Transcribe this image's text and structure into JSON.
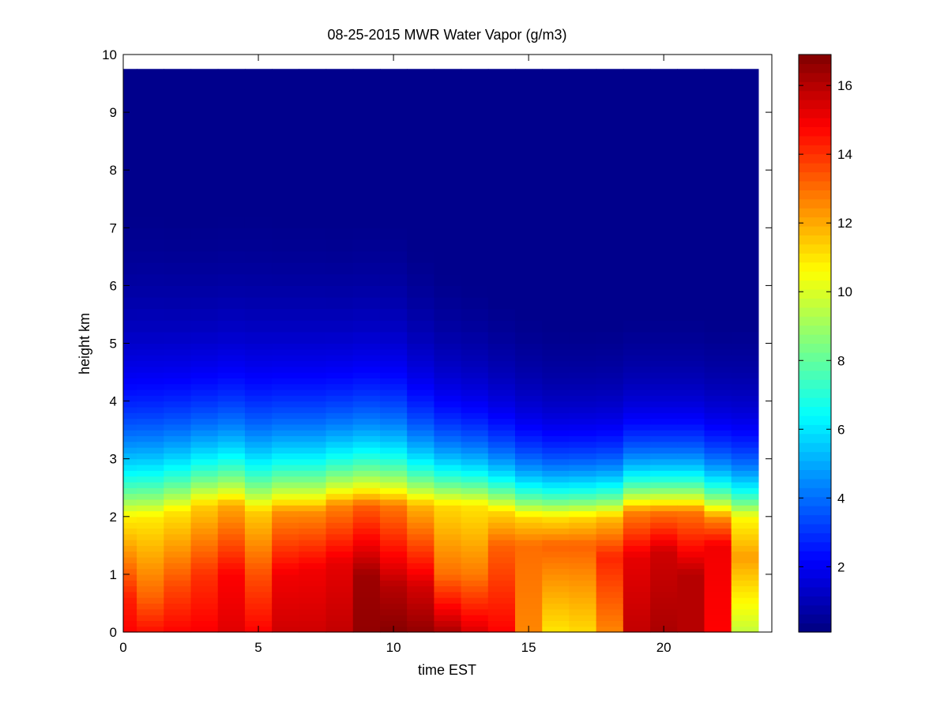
{
  "chart_data": {
    "type": "heatmap",
    "title": "08-25-2015 MWR Water Vapor (g/m3)",
    "xlabel": "time EST",
    "ylabel": "height km",
    "xlim": [
      0,
      24
    ],
    "ylim": [
      0,
      10
    ],
    "x_ticks": [
      0,
      5,
      10,
      15,
      20
    ],
    "y_ticks": [
      0,
      1,
      2,
      3,
      4,
      5,
      6,
      7,
      8,
      9,
      10
    ],
    "x_tick_labels": [
      "0",
      "5",
      "10",
      "15",
      "20"
    ],
    "y_tick_labels": [
      "0",
      "1",
      "2",
      "3",
      "4",
      "5",
      "6",
      "7",
      "8",
      "9",
      "10"
    ],
    "colorbar": {
      "colormap": "jet",
      "range": [
        0.1,
        16.9
      ],
      "ticks": [
        2,
        4,
        6,
        8,
        10,
        12,
        14,
        16
      ],
      "tick_labels": [
        "2",
        "4",
        "6",
        "8",
        "10",
        "12",
        "14",
        "16"
      ]
    },
    "grid": false,
    "data_x_range": [
      0,
      23.5
    ],
    "data_y_top": 9.75,
    "x": [
      0.5,
      1.5,
      2.5,
      3.5,
      4.5,
      5.5,
      6.5,
      7.5,
      8.5,
      9.5,
      10.5,
      11.5,
      12.5,
      13.5,
      14.5,
      15.5,
      16.5,
      17.5,
      18.5,
      19.5,
      20.5,
      21.5,
      22.5,
      23.5
    ],
    "y": [
      0,
      0.1,
      0.2,
      0.3,
      0.4,
      0.5,
      0.6,
      0.7,
      0.8,
      0.9,
      1.0,
      1.1,
      1.2,
      1.3,
      1.4,
      1.5,
      1.6,
      1.7,
      1.8,
      1.9,
      2.0,
      2.1,
      2.2,
      2.3,
      2.4,
      2.5,
      2.6,
      2.7,
      2.8,
      2.9,
      3.0,
      3.1,
      3.2,
      3.3,
      3.4,
      3.5,
      3.6,
      3.7,
      3.8,
      3.9,
      4.0,
      4.1,
      4.2,
      4.3,
      4.4,
      4.5,
      4.6,
      4.7,
      4.8,
      4.9,
      5.0,
      5.2,
      5.4,
      5.6,
      5.8,
      6.0,
      6.2,
      6.4,
      6.6,
      6.8,
      7.0,
      7.2,
      7.4,
      7.6,
      7.8,
      8.0,
      8.2,
      8.4,
      8.6,
      8.8,
      9.0,
      9.2,
      9.4,
      9.6
    ],
    "profiles": [
      {
        "time": 0.5,
        "surface": 14.8,
        "peak": 14.3,
        "peak_height": 0.6,
        "mid": 10.8,
        "mid_height": 2.0,
        "scale_height": 1.45
      },
      {
        "time": 1.5,
        "surface": 14.6,
        "peak": 13.2,
        "peak_height": 0.6,
        "mid": 10.9,
        "mid_height": 2.0,
        "scale_height": 1.45
      },
      {
        "time": 2.5,
        "surface": 14.8,
        "peak": 13.6,
        "peak_height": 0.8,
        "mid": 11.0,
        "mid_height": 2.1,
        "scale_height": 1.4
      },
      {
        "time": 3.5,
        "surface": 14.9,
        "peak": 14.0,
        "peak_height": 1.0,
        "mid": 11.4,
        "mid_height": 2.2,
        "scale_height": 1.35
      },
      {
        "time": 4.5,
        "surface": 15.3,
        "peak": 14.8,
        "peak_height": 1.0,
        "mid": 12.0,
        "mid_height": 2.2,
        "scale_height": 1.35
      },
      {
        "time": 5.5,
        "surface": 14.8,
        "peak": 13.5,
        "peak_height": 1.0,
        "mid": 11.4,
        "mid_height": 2.1,
        "scale_height": 1.4
      },
      {
        "time": 6.5,
        "surface": 15.6,
        "peak": 15.0,
        "peak_height": 1.0,
        "mid": 12.4,
        "mid_height": 2.1,
        "scale_height": 1.35
      },
      {
        "time": 7.5,
        "surface": 15.6,
        "peak": 15.0,
        "peak_height": 1.1,
        "mid": 12.4,
        "mid_height": 2.1,
        "scale_height": 1.35
      },
      {
        "time": 8.5,
        "surface": 15.8,
        "peak": 15.2,
        "peak_height": 1.2,
        "mid": 12.6,
        "mid_height": 2.2,
        "scale_height": 1.3
      },
      {
        "time": 9.5,
        "surface": 16.6,
        "peak": 16.4,
        "peak_height": 1.0,
        "mid": 13.2,
        "mid_height": 2.2,
        "scale_height": 1.3
      },
      {
        "time": 10.5,
        "surface": 16.8,
        "peak": 16.0,
        "peak_height": 0.8,
        "mid": 12.8,
        "mid_height": 2.2,
        "scale_height": 1.3
      },
      {
        "time": 11.5,
        "surface": 16.6,
        "peak": 15.5,
        "peak_height": 0.8,
        "mid": 11.8,
        "mid_height": 2.2,
        "scale_height": 1.2
      },
      {
        "time": 12.5,
        "surface": 16.2,
        "peak": 13.0,
        "peak_height": 1.0,
        "mid": 11.2,
        "mid_height": 2.2,
        "scale_height": 1.1
      },
      {
        "time": 13.5,
        "surface": 15.4,
        "peak": 12.8,
        "peak_height": 1.0,
        "mid": 11.0,
        "mid_height": 2.2,
        "scale_height": 1.05
      },
      {
        "time": 14.5,
        "surface": 14.8,
        "peak": 13.2,
        "peak_height": 1.5,
        "mid": 11.2,
        "mid_height": 2.1,
        "scale_height": 1.0
      },
      {
        "time": 15.5,
        "surface": 12.6,
        "peak": 13.0,
        "peak_height": 1.5,
        "mid": 11.2,
        "mid_height": 2.0,
        "scale_height": 0.95
      },
      {
        "time": 16.5,
        "surface": 11.0,
        "peak": 13.2,
        "peak_height": 1.5,
        "mid": 11.0,
        "mid_height": 2.0,
        "scale_height": 0.9
      },
      {
        "time": 17.5,
        "surface": 11.2,
        "peak": 13.2,
        "peak_height": 1.5,
        "mid": 11.2,
        "mid_height": 2.0,
        "scale_height": 0.9
      },
      {
        "time": 18.5,
        "surface": 12.6,
        "peak": 14.2,
        "peak_height": 1.3,
        "mid": 11.6,
        "mid_height": 2.0,
        "scale_height": 0.9
      },
      {
        "time": 19.5,
        "surface": 15.8,
        "peak": 15.2,
        "peak_height": 1.3,
        "mid": 12.6,
        "mid_height": 2.1,
        "scale_height": 0.9
      },
      {
        "time": 20.5,
        "surface": 16.2,
        "peak": 15.6,
        "peak_height": 1.4,
        "mid": 12.8,
        "mid_height": 2.1,
        "scale_height": 0.9
      },
      {
        "time": 21.5,
        "surface": 16.0,
        "peak": 16.0,
        "peak_height": 1.0,
        "mid": 12.8,
        "mid_height": 2.1,
        "scale_height": 0.9
      },
      {
        "time": 22.5,
        "surface": 14.8,
        "peak": 15.0,
        "peak_height": 1.5,
        "mid": 12.4,
        "mid_height": 2.0,
        "scale_height": 0.9
      },
      {
        "time": 23.5,
        "surface": 9.6,
        "peak": 12.2,
        "peak_height": 1.3,
        "mid": 10.6,
        "mid_height": 2.0,
        "scale_height": 0.95
      }
    ]
  }
}
